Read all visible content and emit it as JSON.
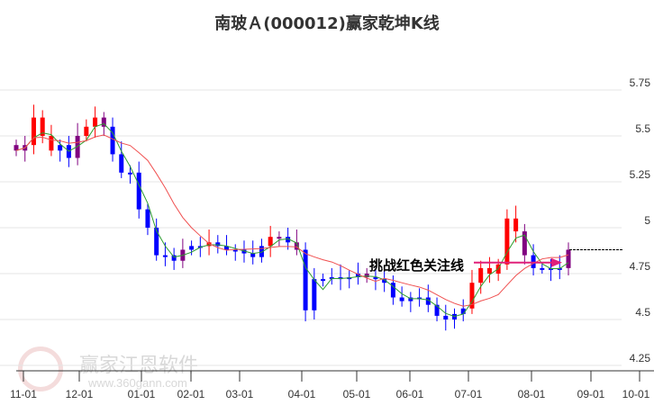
{
  "title": "南玻Ａ(000012)赢家乾坤K线",
  "watermark": {
    "brand": "赢家江恩软件",
    "url": "www.360gann.com",
    "seal": "江赢恩家"
  },
  "annotation": {
    "text": "挑战红色关注线",
    "target_price": 4.81
  },
  "colors": {
    "up": "#ff0000",
    "down": "#0000ff",
    "neutral": "#800080",
    "ma_short": "#2e9e2e",
    "ma_long": "#f05050",
    "arrow": "#e0207a"
  },
  "chart_data": {
    "type": "candlestick",
    "title": "南玻Ａ(000012)赢家乾坤K线",
    "y_ticks": [
      5.75,
      5.5,
      5.25,
      5,
      4.75,
      4.5,
      4.25
    ],
    "ylim": [
      4.22,
      5.8
    ],
    "x_ticks": [
      "11-01",
      "12-01",
      "01-01",
      "02-01",
      "03-01",
      "04-01",
      "05-01",
      "06-01",
      "07-01",
      "08-01",
      "09-01",
      "10-01"
    ],
    "last_close_line": 4.88,
    "closes": [
      5.42,
      5.45,
      5.6,
      5.5,
      5.42,
      5.45,
      5.38,
      5.5,
      5.55,
      5.6,
      5.55,
      5.4,
      5.3,
      5.3,
      5.1,
      5.0,
      4.85,
      4.85,
      4.82,
      4.88,
      4.9,
      4.9,
      4.92,
      4.9,
      4.88,
      4.88,
      4.86,
      4.84,
      4.9,
      4.95,
      4.95,
      4.92,
      4.88,
      4.55,
      4.72,
      4.72,
      4.73,
      4.72,
      4.73,
      4.75,
      4.73,
      4.72,
      4.7,
      4.62,
      4.6,
      4.62,
      4.62,
      4.58,
      4.52,
      4.5,
      4.53,
      4.56,
      4.7,
      4.78,
      4.75,
      4.8,
      5.05,
      4.98,
      4.85,
      4.78,
      4.78,
      4.77,
      4.78,
      4.88
    ],
    "states": "pprrrbbprrpbbbbbbbbpbbrbbbbbbrpbpbbbbbbbpbbbbbbbbbbbrrrrrrpbbbbp"
  }
}
